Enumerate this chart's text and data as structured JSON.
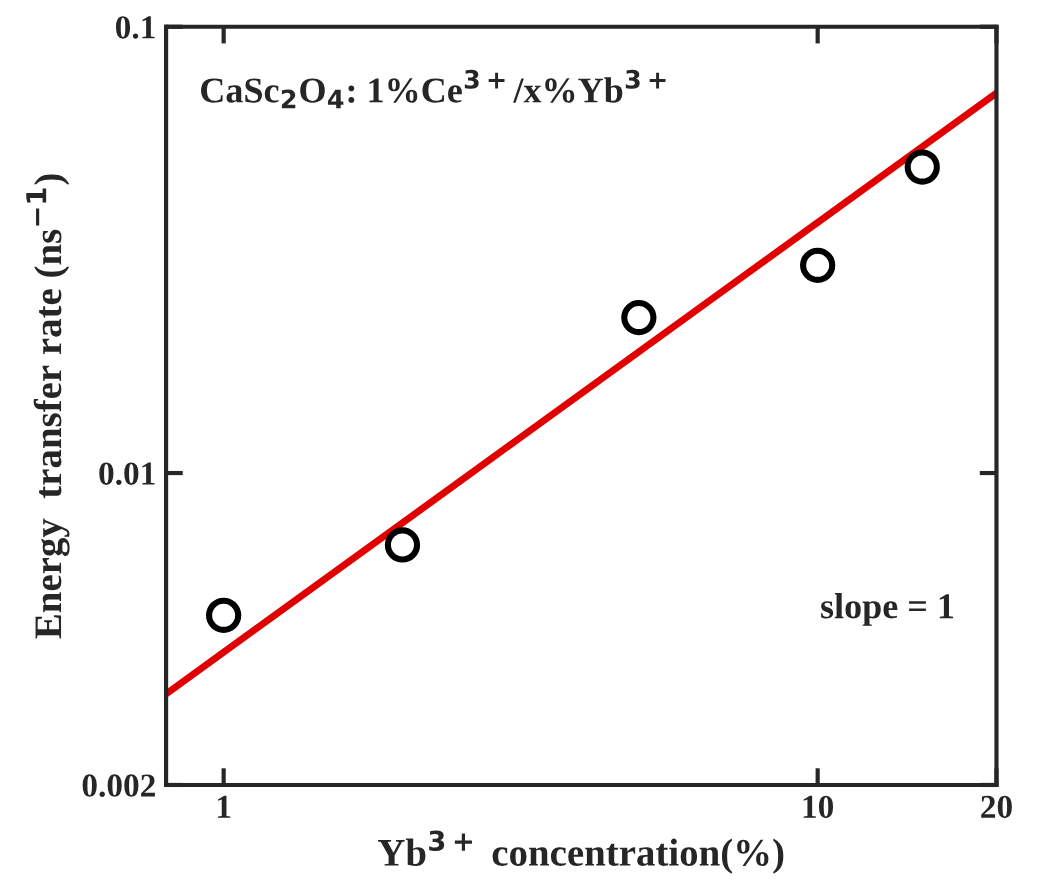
{
  "chart_data": {
    "type": "scatter",
    "xlabel": "Yb$^{3+}$ concentration(%)",
    "ylabel": "Energy  transfer rate (ns$^{−1}$)",
    "log": "xy",
    "xlim": [
      0.8,
      20
    ],
    "ylim": [
      0.002,
      0.1
    ],
    "xticks": [
      1,
      10,
      20
    ],
    "yticks": [
      0.002,
      0.01,
      0.1
    ],
    "grid": false,
    "legend": false,
    "annotations": [
      "CaSc$_{2}$O$_{4}$: 1%Ce$^{3+}$/x%Yb$^{3+}$",
      "slope = 1"
    ],
    "series": [
      {
        "color": "#000000",
        "marker": "circle",
        "x": [
          1,
          2,
          5,
          10,
          15
        ],
        "values": [
          0.0048,
          0.0069,
          0.0223,
          0.0292,
          0.0485
        ]
      },
      {
        "type": "line",
        "color": "#e00000",
        "marker": "none",
        "line_style": "solid",
        "x": [
          0.8,
          20
        ],
        "values": [
          0.0032,
          0.071
        ]
      }
    ]
  }
}
